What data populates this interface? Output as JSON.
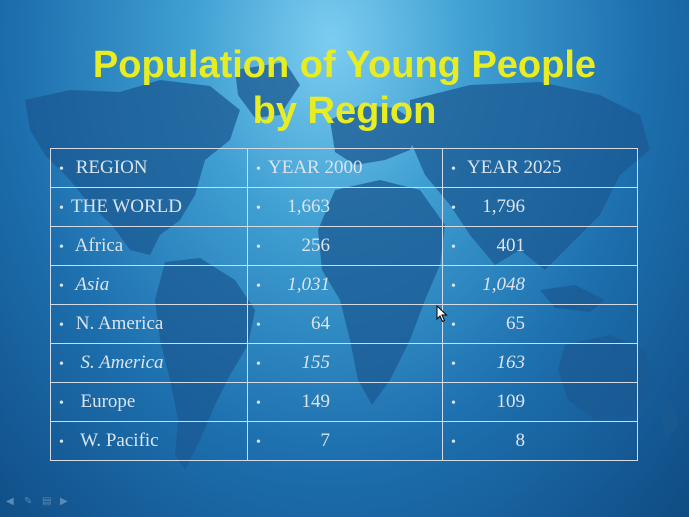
{
  "slide": {
    "title_line1": "Population of Young People",
    "title_line2": "by Region"
  },
  "table": {
    "header": {
      "region": "REGION",
      "y2000": "YEAR 2000",
      "y2025": "YEAR 2025"
    },
    "rows": [
      {
        "region": "THE WORLD",
        "y2000": "1,663",
        "y2025": "1,796"
      },
      {
        "region": "Africa",
        "y2000": "256",
        "y2025": "401"
      },
      {
        "region": "Asia",
        "y2000": "1,031",
        "y2025": "1,048"
      },
      {
        "region": "N. America",
        "y2000": "64",
        "y2025": "65"
      },
      {
        "region": "S. America",
        "y2000": "155",
        "y2025": "163"
      },
      {
        "region": "Europe",
        "y2000": "149",
        "y2025": "109"
      },
      {
        "region": "W. Pacific",
        "y2000": "7",
        "y2025": "8"
      }
    ]
  },
  "colors": {
    "title": "#e8ec22",
    "highlight": "#e8ec22",
    "text": "#dbe4ec",
    "background": "#1d6fae"
  },
  "icons": {
    "nav_prev": "arrow-left-icon",
    "nav_pen": "pen-icon",
    "nav_menu": "menu-icon",
    "nav_next": "arrow-right-icon",
    "cursor": "mouse-pointer-icon"
  }
}
